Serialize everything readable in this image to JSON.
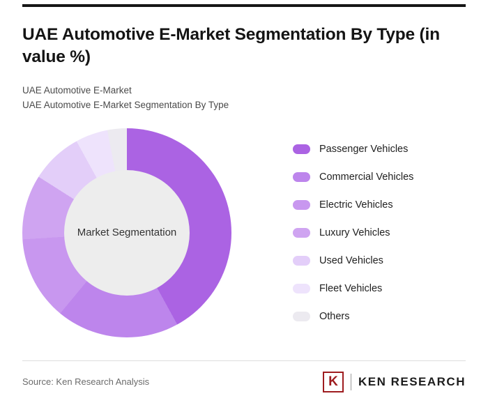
{
  "page": {
    "title": "UAE Automotive E-Market Segmentation By Type (in value %)",
    "subtitle_line1": "UAE Automotive E-Market",
    "subtitle_line2": "UAE Automotive E-Market Segmentation By Type"
  },
  "chart_data": {
    "type": "pie",
    "subtype": "donut",
    "title": "UAE Automotive E-Market Segmentation By Type (in value %)",
    "center_label": "Market Segmentation",
    "legend_position": "right",
    "start_angle_deg": 0,
    "direction": "clockwise",
    "unit": "value %",
    "categories": [
      "Passenger Vehicles",
      "Commercial Vehicles",
      "Electric Vehicles",
      "Luxury Vehicles",
      "Used Vehicles",
      "Fleet Vehicles",
      "Others"
    ],
    "values": [
      42,
      19,
      13,
      10,
      8,
      5,
      3
    ],
    "colors": [
      "#ab63e3",
      "#bd85ec",
      "#c897ef",
      "#cfa4f1",
      "#e3cef9",
      "#eee3fc",
      "#eceaf0"
    ],
    "inner_circle_color": "#ededed"
  },
  "footer": {
    "source": "Source: Ken Research Analysis",
    "logo": {
      "letter": "K",
      "text": "KEN RESEARCH",
      "accent_color": "#9e1c1f"
    }
  },
  "theme": {
    "top_rule_color": "#161616",
    "divider_color": "#dddddd"
  }
}
